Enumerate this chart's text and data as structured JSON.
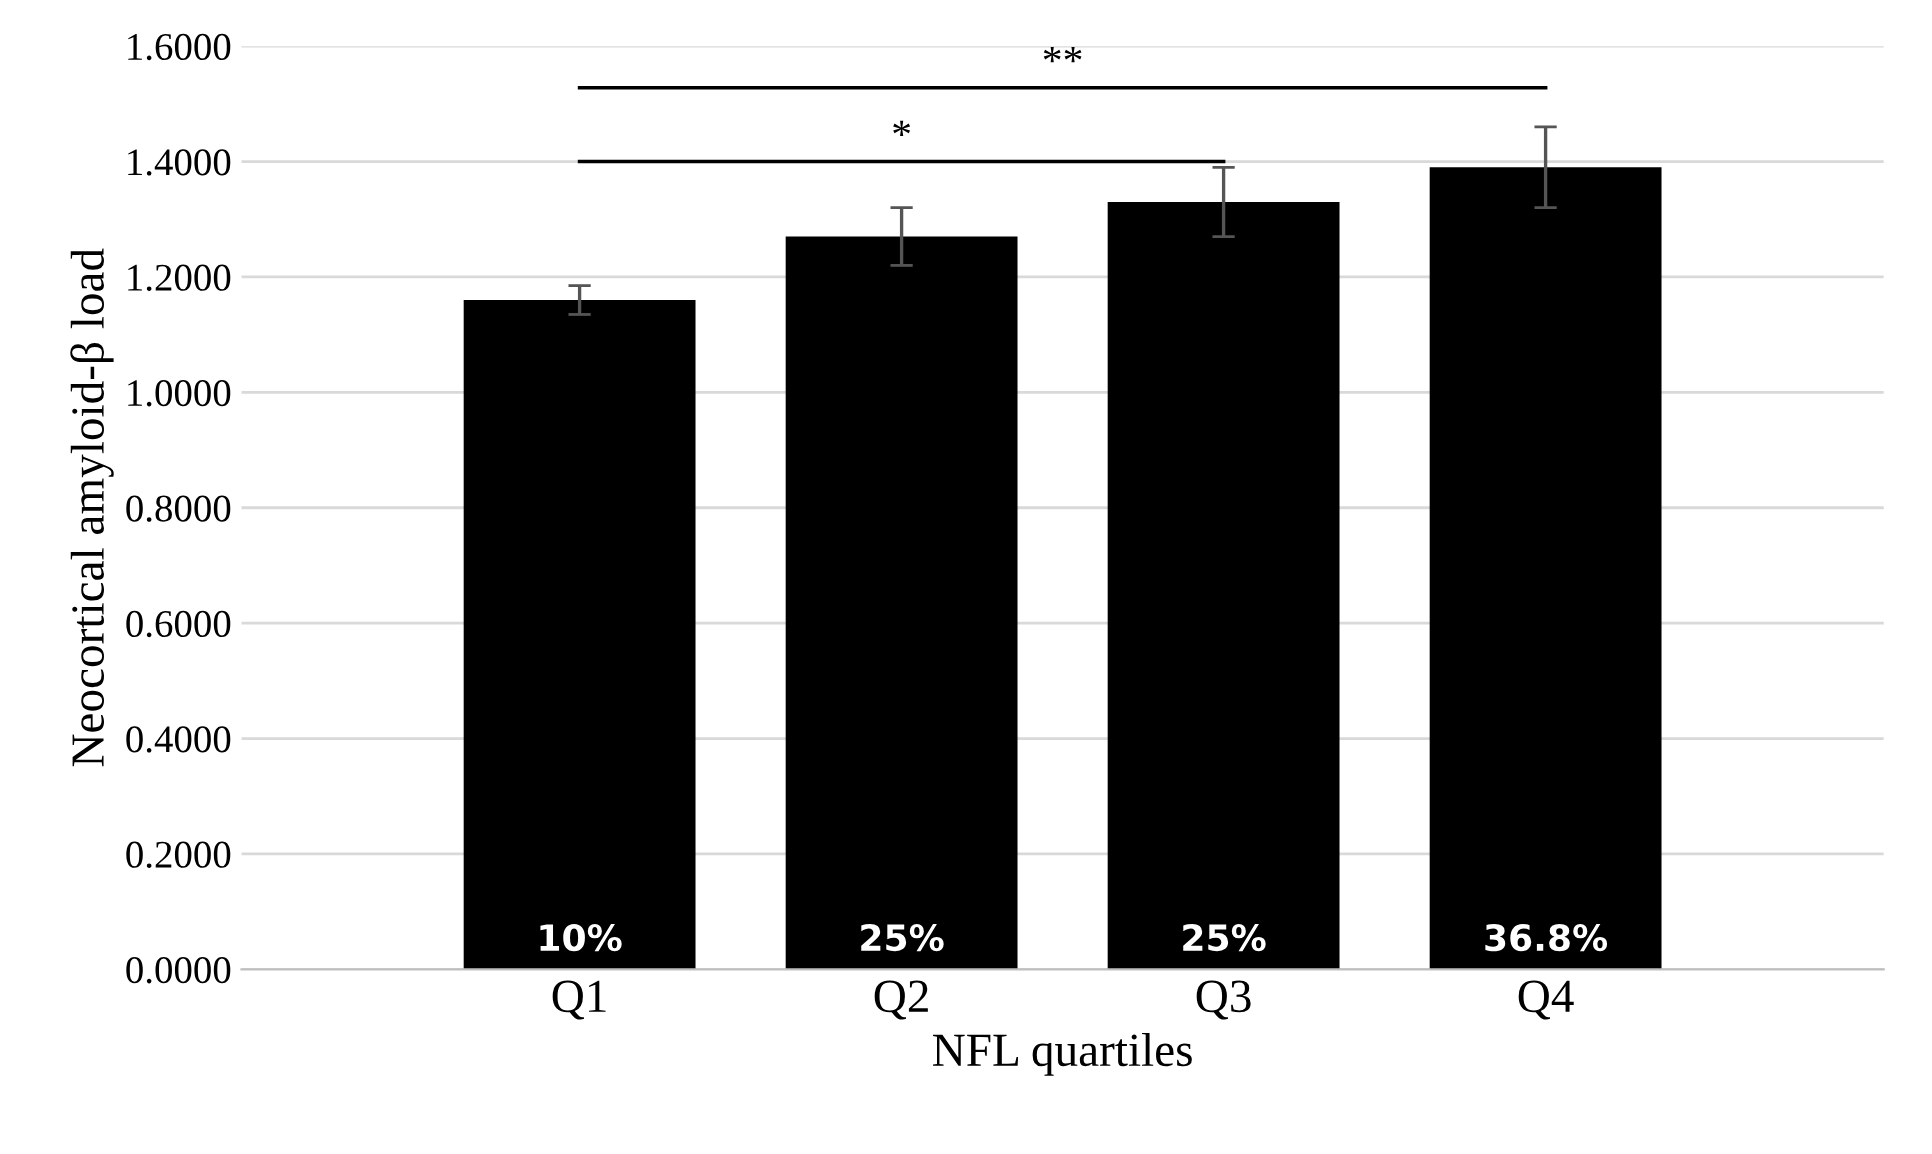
{
  "chart_data": {
    "type": "bar",
    "xlabel": "NFL quartiles",
    "ylabel": "Neocortical amyloid-β load",
    "categories": [
      "Q1",
      "Q2",
      "Q3",
      "Q4"
    ],
    "values": [
      1.16,
      1.27,
      1.33,
      1.39
    ],
    "errors": [
      0.025,
      0.05,
      0.06,
      0.07
    ],
    "color": "#000000",
    "ylim": [
      0,
      1.6
    ],
    "yticks": [
      {
        "value": 0,
        "label": "0.0000"
      },
      {
        "value": 0.2,
        "label": "0.2000"
      },
      {
        "value": 0.4,
        "label": "0.4000"
      },
      {
        "value": 0.6,
        "label": "0.6000"
      },
      {
        "value": 0.8,
        "label": "0.8000"
      },
      {
        "value": 1.0,
        "label": "1.0000"
      },
      {
        "value": 1.2,
        "label": "1.2000"
      },
      {
        "value": 1.4,
        "label": "1.4000"
      },
      {
        "value": 1.6,
        "label": "1.6000"
      }
    ],
    "grid": "y",
    "annotations": [
      {
        "text": "10%",
        "x": "Q1",
        "y": 0
      },
      {
        "text": "25%",
        "x": "Q2",
        "y": 0
      },
      {
        "text": "25%",
        "x": "Q3",
        "y": 0
      },
      {
        "text": "36.8%",
        "x": "Q4",
        "y": 0
      },
      "*",
      "**"
    ]
  }
}
